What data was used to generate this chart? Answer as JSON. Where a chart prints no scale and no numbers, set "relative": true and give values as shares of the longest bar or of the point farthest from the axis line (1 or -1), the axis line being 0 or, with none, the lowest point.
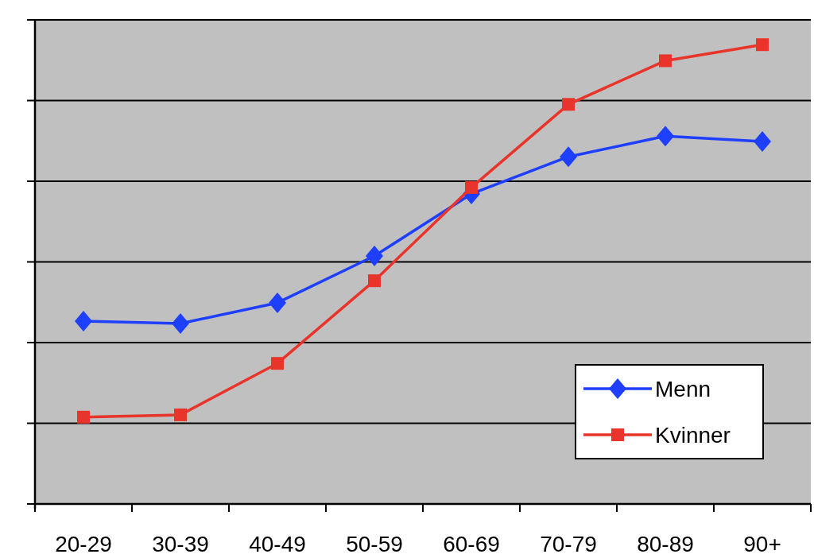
{
  "chart_data": {
    "type": "line",
    "relative": true,
    "categories": [
      "20-29",
      "30-39",
      "40-49",
      "50-59",
      "60-69",
      "70-79",
      "80-89",
      "90+"
    ],
    "series": [
      {
        "name": "Menn",
        "color": "#1f3fff",
        "marker": "diamond",
        "values": [
          0.398,
          0.393,
          0.438,
          0.54,
          0.675,
          0.756,
          0.801,
          0.789
        ]
      },
      {
        "name": "Kvinner",
        "color": "#e8342a",
        "marker": "square",
        "values": [
          0.189,
          0.194,
          0.306,
          0.486,
          0.689,
          0.87,
          0.965,
          1
        ]
      }
    ],
    "grid": true,
    "legend": "bottom right"
  }
}
